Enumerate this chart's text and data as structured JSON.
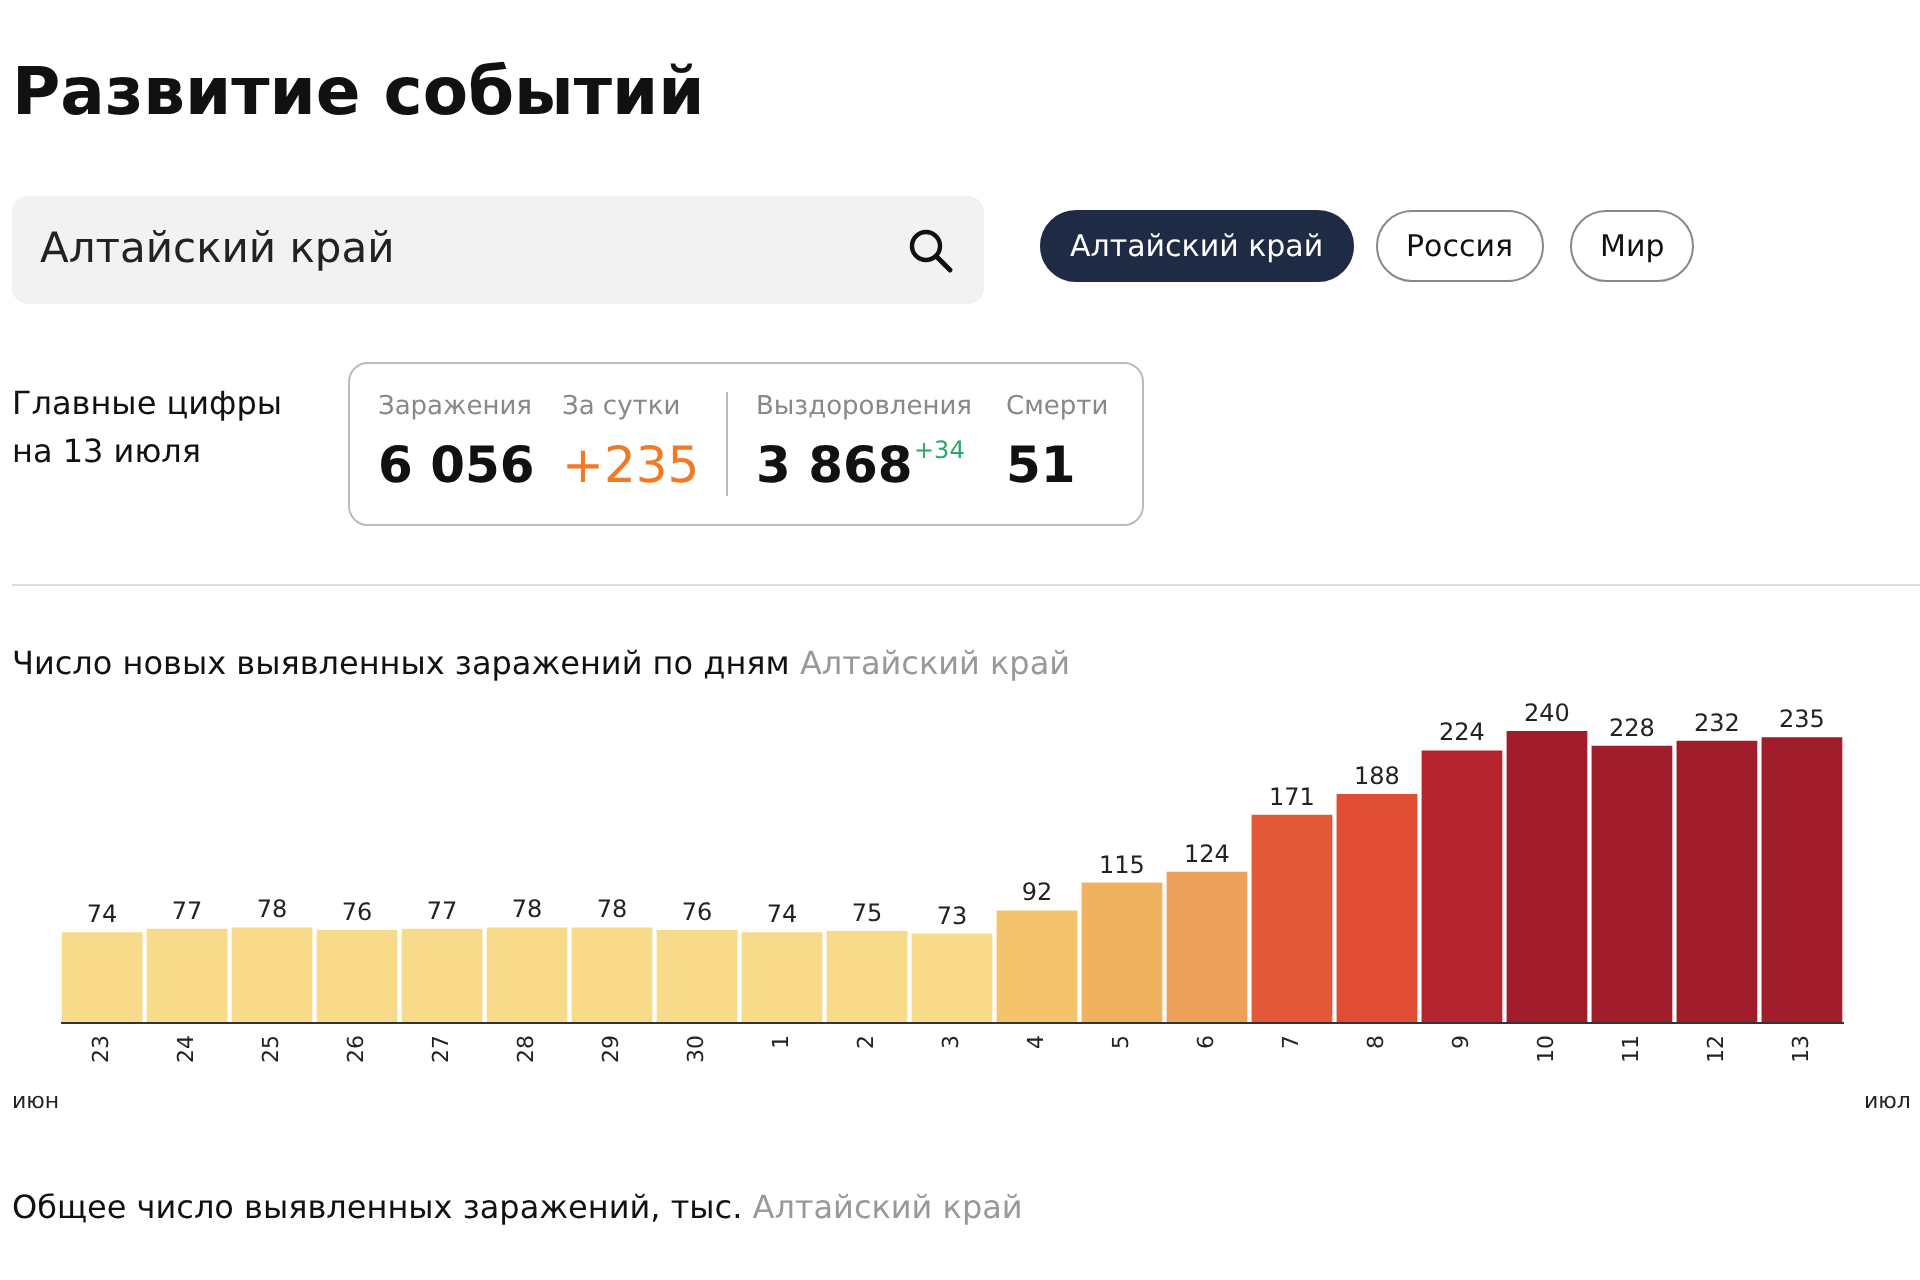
{
  "chart_data": {
    "type": "bar",
    "title": "Число новых выявленных заражений по дням",
    "subtitle": "Алтайский край",
    "categories": [
      "23",
      "24",
      "25",
      "26",
      "27",
      "28",
      "29",
      "30",
      "1",
      "2",
      "3",
      "4",
      "5",
      "6",
      "7",
      "8",
      "9",
      "10",
      "11",
      "12",
      "13"
    ],
    "values": [
      74,
      77,
      78,
      76,
      77,
      78,
      78,
      76,
      74,
      75,
      73,
      92,
      115,
      124,
      171,
      188,
      224,
      240,
      228,
      232,
      235
    ],
    "colors": [
      "#f7da8a",
      "#f7da8a",
      "#f7da8a",
      "#f7da8a",
      "#f7da8a",
      "#f7da8a",
      "#f7da8a",
      "#f7da8a",
      "#f7da8a",
      "#f7da8a",
      "#f7da8a",
      "#f4c46c",
      "#f0b25e",
      "#eca05a",
      "#e4583a",
      "#e14c35",
      "#b52530",
      "#a11d2b",
      "#a11d2b",
      "#a11d2b",
      "#a11d2b"
    ],
    "data_labels": true,
    "annotations": [
      "Развитие событий",
      "Алтайский край",
      "Алтайский край",
      "Россия",
      "Мир",
      "Главные цифры на 13 июля",
      "Заражения",
      "6 056",
      "За сутки",
      "+235",
      "Выздоровления",
      "3 868",
      "+34",
      "Смерти",
      "51",
      "июн",
      "июл",
      "Общее число выявленных заражений, тыс.",
      "Алтайский край"
    ]
  }
}
